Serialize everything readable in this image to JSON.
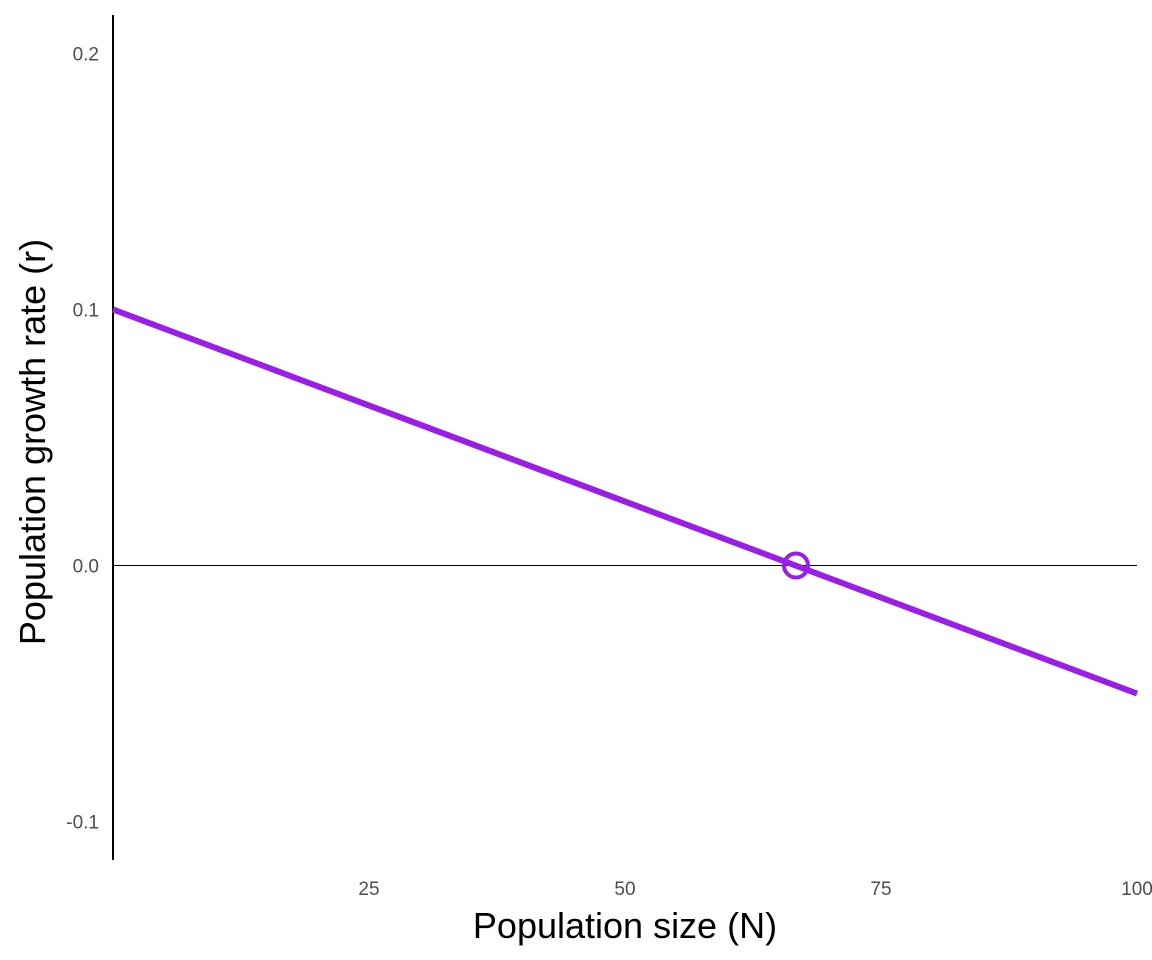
{
  "chart_data": {
    "type": "line",
    "title": "",
    "xlabel": "Population size (N)",
    "ylabel": "Population growth rate (r)",
    "xlim": [
      0,
      100
    ],
    "ylim": [
      -0.115,
      0.215
    ],
    "x_ticks": [
      25,
      50,
      75,
      100
    ],
    "x_tick_labels": [
      "25",
      "50",
      "75",
      "100"
    ],
    "y_ticks": [
      -0.1,
      0.0,
      0.1,
      0.2
    ],
    "y_tick_labels": [
      "-0.1",
      "0.0",
      "0.1",
      "0.2"
    ],
    "grid": false,
    "reference_line": {
      "y": 0
    },
    "series": [
      {
        "x": [
          0,
          100
        ],
        "y": [
          0.1,
          -0.05
        ],
        "color": "#9b1de8"
      }
    ],
    "equilibrium_point": {
      "x": 66.7,
      "y": 0.0,
      "color": "#9b1de8"
    }
  }
}
